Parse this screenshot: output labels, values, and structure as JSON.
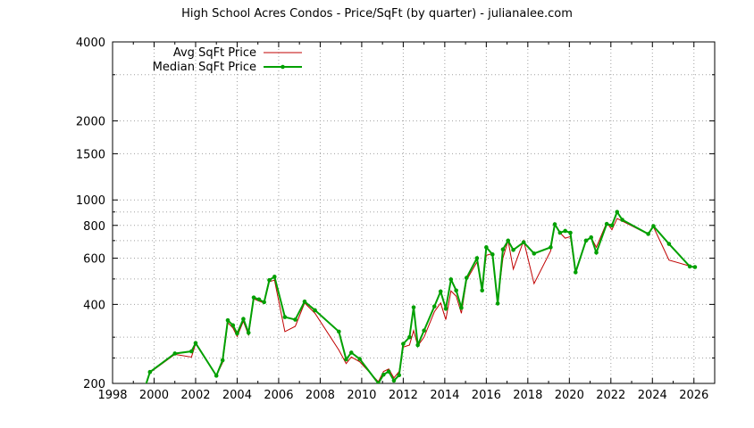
{
  "chart_data": {
    "type": "line",
    "title": "High School Acres Condos - Price/SqFt (by quarter) - julianalee.com",
    "xlabel": "",
    "ylabel": "",
    "xlim": [
      1998,
      2027
    ],
    "ylim": [
      200,
      4000
    ],
    "yscale": "log",
    "grid": true,
    "legend_position": "top-left",
    "x_ticks": [
      1998,
      2000,
      2002,
      2004,
      2006,
      2008,
      2010,
      2012,
      2014,
      2016,
      2018,
      2020,
      2022,
      2024,
      2026
    ],
    "y_ticks": [
      200,
      400,
      600,
      800,
      1000,
      1500,
      2000,
      4000
    ],
    "y_minor_gridlines": [
      250,
      300,
      500,
      700,
      900,
      3000
    ],
    "series": [
      {
        "name": "Avg SqFt Price",
        "color": "#c00000",
        "marker": false,
        "points": [
          [
            1999.4,
            176
          ],
          [
            1999.8,
            220
          ],
          [
            2001.0,
            258
          ],
          [
            2001.8,
            252
          ],
          [
            2002.0,
            283
          ],
          [
            2003.0,
            214
          ],
          [
            2003.3,
            240
          ],
          [
            2003.55,
            341
          ],
          [
            2003.8,
            325
          ],
          [
            2004.0,
            302
          ],
          [
            2004.3,
            345
          ],
          [
            2004.55,
            305
          ],
          [
            2004.8,
            420
          ],
          [
            2005.05,
            412
          ],
          [
            2005.3,
            405
          ],
          [
            2005.55,
            488
          ],
          [
            2005.8,
            495
          ],
          [
            2006.3,
            315
          ],
          [
            2006.8,
            330
          ],
          [
            2007.25,
            405
          ],
          [
            2007.75,
            370
          ],
          [
            2008.9,
            268
          ],
          [
            2009.25,
            238
          ],
          [
            2009.5,
            252
          ],
          [
            2009.9,
            242
          ],
          [
            2010.8,
            203
          ],
          [
            2011.05,
            222
          ],
          [
            2011.3,
            227
          ],
          [
            2011.55,
            210
          ],
          [
            2011.8,
            222
          ],
          [
            2012.0,
            275
          ],
          [
            2012.3,
            280
          ],
          [
            2012.5,
            318
          ],
          [
            2012.7,
            278
          ],
          [
            2013.0,
            300
          ],
          [
            2013.5,
            375
          ],
          [
            2013.8,
            405
          ],
          [
            2014.05,
            350
          ],
          [
            2014.3,
            450
          ],
          [
            2014.55,
            430
          ],
          [
            2014.8,
            370
          ],
          [
            2015.05,
            495
          ],
          [
            2015.55,
            580
          ],
          [
            2015.8,
            470
          ],
          [
            2016.0,
            615
          ],
          [
            2016.3,
            625
          ],
          [
            2016.55,
            410
          ],
          [
            2016.8,
            600
          ],
          [
            2017.05,
            700
          ],
          [
            2017.3,
            545
          ],
          [
            2017.8,
            700
          ],
          [
            2018.3,
            480
          ],
          [
            2019.1,
            640
          ],
          [
            2019.3,
            810
          ],
          [
            2019.55,
            750
          ],
          [
            2019.8,
            715
          ],
          [
            2020.05,
            725
          ],
          [
            2020.3,
            525
          ],
          [
            2020.8,
            700
          ],
          [
            2021.05,
            720
          ],
          [
            2021.3,
            660
          ],
          [
            2021.8,
            820
          ],
          [
            2022.05,
            770
          ],
          [
            2022.3,
            850
          ],
          [
            2023.8,
            740
          ],
          [
            2024.05,
            790
          ],
          [
            2024.8,
            590
          ],
          [
            2025.8,
            560
          ],
          [
            2026.05,
            550
          ]
        ]
      },
      {
        "name": "Median SqFt Price",
        "color": "#00a000",
        "marker": true,
        "points": [
          [
            1999.4,
            176
          ],
          [
            1999.8,
            221
          ],
          [
            2001.0,
            260
          ],
          [
            2001.8,
            265
          ],
          [
            2002.0,
            285
          ],
          [
            2003.0,
            214
          ],
          [
            2003.3,
            245
          ],
          [
            2003.55,
            348
          ],
          [
            2003.8,
            333
          ],
          [
            2004.0,
            310
          ],
          [
            2004.3,
            352
          ],
          [
            2004.55,
            312
          ],
          [
            2004.8,
            425
          ],
          [
            2005.05,
            418
          ],
          [
            2005.3,
            408
          ],
          [
            2005.55,
            495
          ],
          [
            2005.8,
            510
          ],
          [
            2006.3,
            358
          ],
          [
            2006.8,
            350
          ],
          [
            2007.25,
            410
          ],
          [
            2007.75,
            380
          ],
          [
            2008.9,
            315
          ],
          [
            2009.25,
            247
          ],
          [
            2009.5,
            262
          ],
          [
            2009.9,
            248
          ],
          [
            2010.8,
            200
          ],
          [
            2011.05,
            216
          ],
          [
            2011.3,
            222
          ],
          [
            2011.55,
            205
          ],
          [
            2011.8,
            215
          ],
          [
            2012.0,
            283
          ],
          [
            2012.3,
            300
          ],
          [
            2012.5,
            390
          ],
          [
            2012.7,
            280
          ],
          [
            2013.0,
            318
          ],
          [
            2013.5,
            393
          ],
          [
            2013.8,
            448
          ],
          [
            2014.05,
            385
          ],
          [
            2014.3,
            498
          ],
          [
            2014.55,
            452
          ],
          [
            2014.8,
            388
          ],
          [
            2015.05,
            505
          ],
          [
            2015.55,
            600
          ],
          [
            2015.8,
            452
          ],
          [
            2016.0,
            660
          ],
          [
            2016.3,
            620
          ],
          [
            2016.55,
            403
          ],
          [
            2016.8,
            648
          ],
          [
            2017.05,
            700
          ],
          [
            2017.3,
            645
          ],
          [
            2017.8,
            690
          ],
          [
            2018.3,
            625
          ],
          [
            2019.1,
            660
          ],
          [
            2019.3,
            808
          ],
          [
            2019.55,
            750
          ],
          [
            2019.8,
            762
          ],
          [
            2020.05,
            750
          ],
          [
            2020.3,
            530
          ],
          [
            2020.8,
            700
          ],
          [
            2021.05,
            720
          ],
          [
            2021.3,
            630
          ],
          [
            2021.8,
            810
          ],
          [
            2022.05,
            800
          ],
          [
            2022.3,
            900
          ],
          [
            2022.55,
            840
          ],
          [
            2023.8,
            742
          ],
          [
            2024.05,
            795
          ],
          [
            2024.8,
            680
          ],
          [
            2025.8,
            558
          ],
          [
            2026.05,
            555
          ]
        ]
      }
    ]
  }
}
